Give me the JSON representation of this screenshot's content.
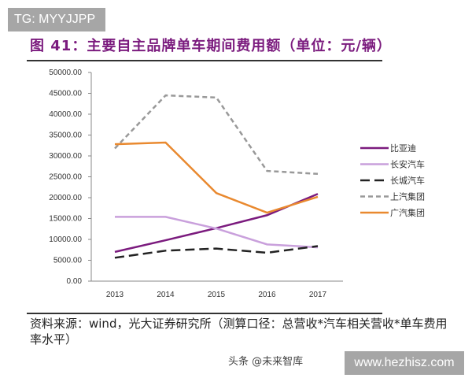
{
  "watermark_top": "TG: MYYJJPP",
  "watermark_bottom": "www.hezhisz.com",
  "watermark_small": "头条 @未来智库",
  "source": "资料来源：wind，光大证券研究所（测算口径：总营收*汽车相关营收*单车费用率水平）",
  "chart_data": {
    "type": "line",
    "title": "图 41：主要自主品牌单车期间费用额（单位：元/辆）",
    "categories": [
      "2013",
      "2014",
      "2015",
      "2016",
      "2017"
    ],
    "ylim": [
      0,
      50000
    ],
    "yticks": [
      "0.00",
      "5000.00",
      "10000.00",
      "15000.00",
      "20000.00",
      "25000.00",
      "30000.00",
      "35000.00",
      "40000.00",
      "45000.00",
      "50000.00"
    ],
    "grid": false,
    "legend_position": "right",
    "series": [
      {
        "name": "比亚迪",
        "color": "#7b1b7e",
        "dash": "solid",
        "values": [
          7000,
          9800,
          12700,
          15800,
          20900
        ]
      },
      {
        "name": "长安汽车",
        "color": "#c9a0dc",
        "dash": "solid",
        "values": [
          15400,
          15400,
          12600,
          8800,
          8100
        ]
      },
      {
        "name": "长城汽车",
        "color": "#222222",
        "dash": "long-dash",
        "values": [
          5600,
          7300,
          7800,
          6800,
          8400
        ]
      },
      {
        "name": "上汽集团",
        "color": "#999999",
        "dash": "dash",
        "values": [
          31800,
          44500,
          44000,
          26400,
          25700
        ]
      },
      {
        "name": "广汽集团",
        "color": "#e9892f",
        "dash": "solid",
        "values": [
          32800,
          33200,
          21100,
          16400,
          20200
        ]
      }
    ]
  }
}
